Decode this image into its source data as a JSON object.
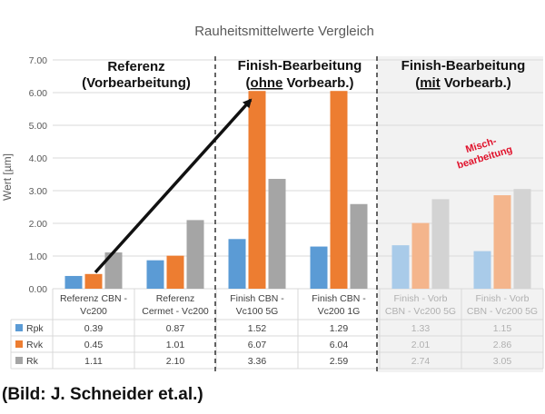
{
  "chart_data": {
    "type": "bar",
    "title": "Rauheitsmittelwerte Vergleich",
    "ylabel": "Wert [µm]",
    "xlabel": "",
    "ylim": [
      0,
      7
    ],
    "yticks": [
      "0.00",
      "1.00",
      "2.00",
      "3.00",
      "4.00",
      "5.00",
      "6.00",
      "7.00"
    ],
    "categories": [
      [
        "Referenz CBN -",
        "Vc200"
      ],
      [
        "Referenz",
        "Cermet - Vc200"
      ],
      [
        "Finish CBN -",
        "Vc100 5G"
      ],
      [
        "Finish CBN -",
        "Vc200 1G"
      ],
      [
        "Finish - Vorb",
        "CBN - Vc200 5G"
      ],
      [
        "Finish - Vorb",
        "CBN - Vc200 5G"
      ]
    ],
    "faded_from": 4,
    "series": [
      {
        "name": "Rpk",
        "color": "#5b9bd5",
        "faded": "#a9cbe9",
        "values": [
          0.39,
          0.87,
          1.52,
          1.29,
          1.33,
          1.15
        ],
        "labels": [
          "0.39",
          "0.87",
          "1.52",
          "1.29",
          "1.33",
          "1.15"
        ]
      },
      {
        "name": "Rvk",
        "color": "#ed7d31",
        "faded": "#f4b58c",
        "values": [
          0.45,
          1.01,
          6.07,
          6.04,
          2.01,
          2.86
        ],
        "labels": [
          "0.45",
          "1.01",
          "6.07",
          "6.04",
          "2.01",
          "2.86"
        ]
      },
      {
        "name": "Rk",
        "color": "#a5a5a5",
        "faded": "#d3d3d3",
        "values": [
          1.11,
          2.1,
          3.36,
          2.59,
          2.74,
          3.05
        ],
        "labels": [
          "1.11",
          "2.10",
          "3.36",
          "2.59",
          "2.74",
          "3.05"
        ]
      }
    ],
    "annotations": {
      "group1": [
        "Referenz",
        "(Vorbearbeitung)"
      ],
      "group2": {
        "line1": "Finish-Bearbeitung",
        "line2_u": "ohne",
        "line2_rest": " Vorbearb.)"
      },
      "group3": {
        "line1": "Finish-Bearbeitung",
        "line2_u": "mit",
        "line2_rest": " Vorbearb.)"
      },
      "misch": [
        "Misch-",
        "bearbeitung"
      ]
    }
  },
  "caption": "(Bild: J. Schneider et.al.)"
}
